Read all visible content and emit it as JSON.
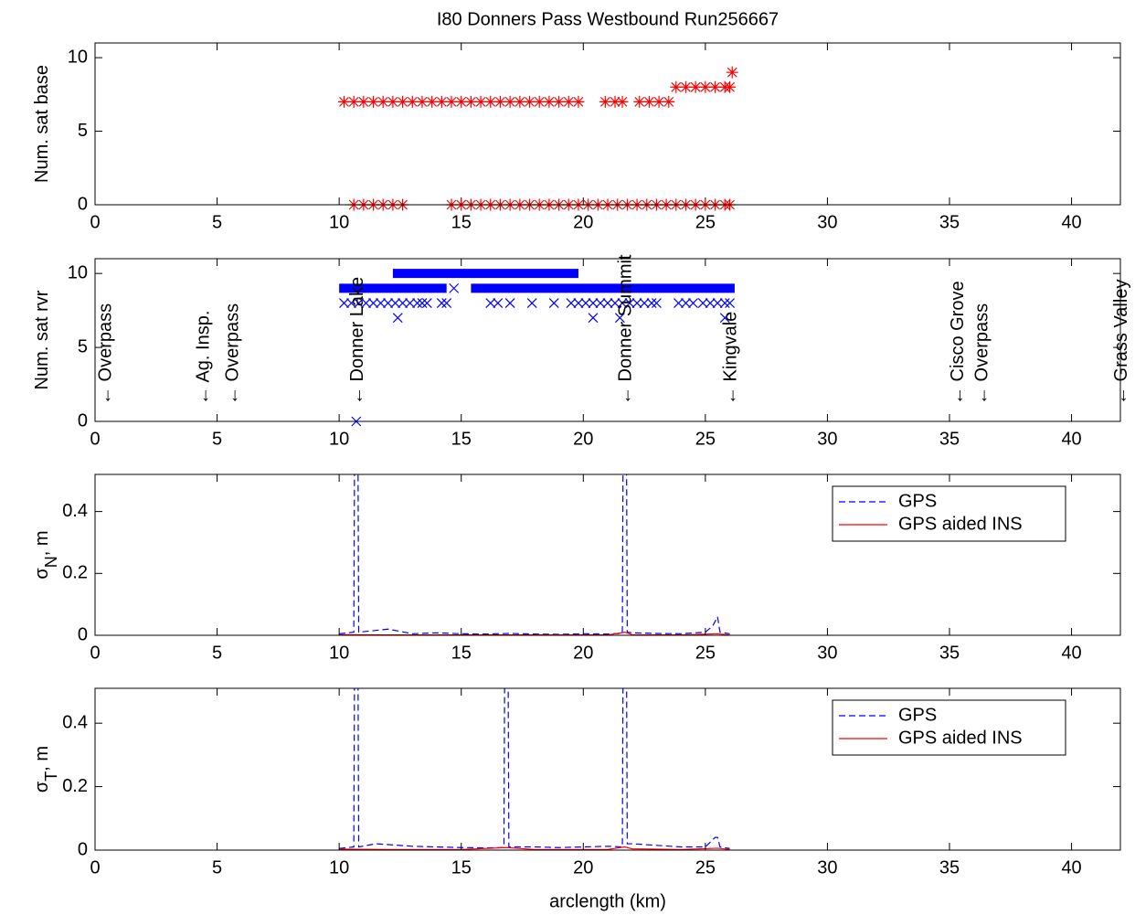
{
  "chart_data": [
    {
      "type": "scatter",
      "title": "I80 Donners Pass Westbound Run256667",
      "ylabel": [
        "Num. sat base"
      ],
      "xlim": [
        0,
        42
      ],
      "xticks": [
        0,
        5,
        10,
        15,
        20,
        25,
        30,
        35,
        40
      ],
      "ylim": [
        0,
        11
      ],
      "yticks": [
        0,
        5,
        10
      ],
      "series": [
        {
          "color": "#ff0000",
          "marker": "*",
          "x": [
            10.2,
            10.6,
            11.0,
            11.4,
            11.8,
            12.2,
            12.6,
            13.0,
            13.4,
            13.8,
            14.2,
            14.6,
            15.0,
            15.4,
            15.8,
            16.2,
            16.6,
            17.0,
            17.4,
            17.8,
            18.2,
            18.6,
            19.0,
            19.4,
            19.8,
            20.9,
            21.3,
            21.6,
            22.3,
            22.7,
            23.1,
            23.5,
            23.8,
            24.2,
            24.6,
            25.0,
            25.4,
            25.8,
            26.0,
            26.1,
            10.6,
            11.0,
            11.4,
            11.8,
            12.2,
            12.6,
            14.6,
            15.0,
            15.4,
            15.8,
            16.2,
            16.6,
            17.0,
            17.4,
            17.8,
            18.2,
            18.6,
            19.0,
            19.4,
            19.8,
            20.2,
            20.6,
            21.0,
            21.4,
            21.8,
            22.2,
            22.6,
            23.0,
            23.4,
            23.8,
            24.2,
            24.6,
            25.0,
            25.4,
            25.8,
            26.0
          ],
          "values": [
            7,
            7,
            7,
            7,
            7,
            7,
            7,
            7,
            7,
            7,
            7,
            7,
            7,
            7,
            7,
            7,
            7,
            7,
            7,
            7,
            7,
            7,
            7,
            7,
            7,
            7,
            7,
            7,
            7,
            7,
            7,
            7,
            8,
            8,
            8,
            8,
            8,
            8,
            8,
            9,
            0,
            0,
            0,
            0,
            0,
            0,
            0,
            0,
            0,
            0,
            0,
            0,
            0,
            0,
            0,
            0,
            0,
            0,
            0,
            0,
            0,
            0,
            0,
            0,
            0,
            0,
            0,
            0,
            0,
            0,
            0,
            0,
            0,
            0,
            0,
            0
          ]
        }
      ]
    },
    {
      "type": "scatter",
      "ylabel": [
        "Num. sat rvr"
      ],
      "xlim": [
        0,
        42
      ],
      "xticks": [
        0,
        5,
        10,
        15,
        20,
        25,
        30,
        35,
        40
      ],
      "ylim": [
        0,
        11
      ],
      "yticks": [
        0,
        5,
        10
      ],
      "series": [
        {
          "color": "#0000ff",
          "linestyle": "-",
          "linewidth": 10,
          "x": [
            10.0,
            14.4,
            14.9,
            15.4,
            26.2,
            26.3,
            12.2,
            19.8
          ],
          "values": [
            9,
            9,
            null,
            9,
            9,
            null,
            10,
            10
          ]
        },
        {
          "color": "#0000ff",
          "marker": "x",
          "x": [
            10.2,
            10.5,
            10.8,
            11.1,
            11.4,
            11.7,
            12.0,
            12.3,
            12.6,
            12.9,
            13.2,
            13.4,
            13.6,
            14.2,
            14.4,
            16.2,
            16.5,
            17.0,
            17.9,
            18.8,
            19.5,
            19.8,
            20.1,
            20.4,
            20.7,
            21.0,
            21.3,
            21.6,
            21.9,
            22.2,
            22.5,
            22.8,
            23.0,
            23.9,
            24.2,
            24.5,
            24.9,
            25.2,
            25.5,
            25.8,
            26.0,
            12.4,
            20.4,
            21.5,
            25.8,
            14.7,
            10.7
          ],
          "values": [
            8,
            8,
            8,
            8,
            8,
            8,
            8,
            8,
            8,
            8,
            8,
            8,
            8,
            8,
            8,
            8,
            8,
            8,
            8,
            8,
            8,
            8,
            8,
            8,
            8,
            8,
            8,
            8,
            8,
            8,
            8,
            8,
            8,
            8,
            8,
            8,
            8,
            8,
            8,
            8,
            8,
            7,
            7,
            7,
            7,
            9,
            0
          ]
        }
      ],
      "annotations": [
        {
          "x": 0.4,
          "text": "← Overpass"
        },
        {
          "x": 4.4,
          "text": "← Ag. Insp."
        },
        {
          "x": 5.6,
          "text": "← Overpass"
        },
        {
          "x": 10.7,
          "text": "← Donner Lake"
        },
        {
          "x": 21.7,
          "text": "← Donner Summit"
        },
        {
          "x": 26.0,
          "text": "← Kingvale"
        },
        {
          "x": 35.3,
          "text": "← Cisco Grove"
        },
        {
          "x": 36.3,
          "text": "← Overpass"
        },
        {
          "x": 42.0,
          "text": "← Grass Valley"
        }
      ]
    },
    {
      "type": "line",
      "ylabel": [
        "σ",
        "N",
        ", m"
      ],
      "legend": "upper right",
      "xlim": [
        0,
        42
      ],
      "xticks": [
        0,
        5,
        10,
        15,
        20,
        25,
        30,
        35,
        40
      ],
      "ylim": [
        0,
        0.52
      ],
      "yticks": [
        0,
        0.2,
        0.4
      ],
      "series": [
        {
          "name": "GPS",
          "color": "#0000ff",
          "linestyle": "--",
          "linewidth": 1.2,
          "x": [
            10,
            10.6,
            10.65,
            10.75,
            10.8,
            12,
            13,
            14,
            15,
            16,
            17,
            18,
            19,
            20,
            21,
            21.6,
            21.65,
            21.75,
            21.8,
            22,
            23,
            24,
            25,
            25.3,
            25.5,
            25.6,
            26
          ],
          "values": [
            0.005,
            0.01,
            1,
            1,
            0.01,
            0.02,
            0.005,
            0.008,
            0.005,
            0.004,
            0.006,
            0.004,
            0.003,
            0.005,
            0.004,
            0.006,
            1,
            1,
            0.01,
            0.008,
            0.006,
            0.005,
            0.01,
            0.03,
            0.06,
            0.01,
            0.005
          ]
        },
        {
          "name": "GPS aided INS",
          "color": "#ff0000",
          "linestyle": "-",
          "linewidth": 1.2,
          "x": [
            10,
            12,
            15,
            18,
            21,
            21.7,
            22,
            24,
            25.5,
            26
          ],
          "values": [
            0.002,
            0.001,
            0.001,
            0.001,
            0.001,
            0.01,
            0.002,
            0.001,
            0.005,
            0.001
          ]
        }
      ]
    },
    {
      "type": "line",
      "ylabel": [
        "σ",
        "T",
        ", m"
      ],
      "legend": "upper right",
      "xlabel": "arclength (km)",
      "xlim": [
        0,
        42
      ],
      "xticks": [
        0,
        5,
        10,
        15,
        20,
        25,
        30,
        35,
        40
      ],
      "ylim": [
        0,
        0.51
      ],
      "yticks": [
        0,
        0.2,
        0.4
      ],
      "series": [
        {
          "name": "GPS",
          "color": "#0000ff",
          "linestyle": "--",
          "linewidth": 1.2,
          "x": [
            10,
            10.6,
            10.65,
            10.75,
            10.8,
            11.5,
            13,
            14,
            15,
            16,
            16.75,
            16.8,
            16.9,
            16.95,
            18,
            19,
            20,
            21,
            21.6,
            21.65,
            21.75,
            21.8,
            22,
            23,
            24,
            25,
            25.4,
            25.5,
            25.6,
            26
          ],
          "values": [
            0.005,
            0.01,
            1,
            1,
            0.01,
            0.02,
            0.012,
            0.01,
            0.008,
            0.007,
            0.008,
            1,
            1,
            0.01,
            0.01,
            0.008,
            0.01,
            0.012,
            0.01,
            1,
            1,
            0.02,
            0.02,
            0.015,
            0.01,
            0.01,
            0.04,
            0.04,
            0.01,
            0.005
          ]
        },
        {
          "name": "GPS aided INS",
          "color": "#ff0000",
          "linestyle": "-",
          "linewidth": 1.2,
          "x": [
            10,
            12,
            15,
            16.85,
            18,
            21,
            21.7,
            22,
            24,
            25.5,
            26
          ],
          "values": [
            0.003,
            0.002,
            0.002,
            0.008,
            0.002,
            0.002,
            0.01,
            0.004,
            0.002,
            0.006,
            0.002
          ]
        }
      ]
    }
  ]
}
